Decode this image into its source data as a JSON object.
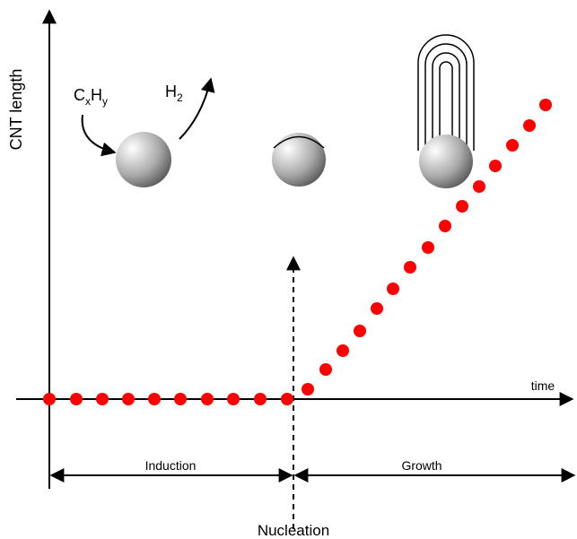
{
  "axes": {
    "y_label": "CNT length",
    "x_label": "time"
  },
  "reactant": {
    "base1": "C",
    "sub1": "x",
    "base2": "H",
    "sub2": "y"
  },
  "product": {
    "base": "H",
    "sub": "2"
  },
  "phases": [
    "Induction",
    "Growth"
  ],
  "nucleation": "Nucleation"
}
